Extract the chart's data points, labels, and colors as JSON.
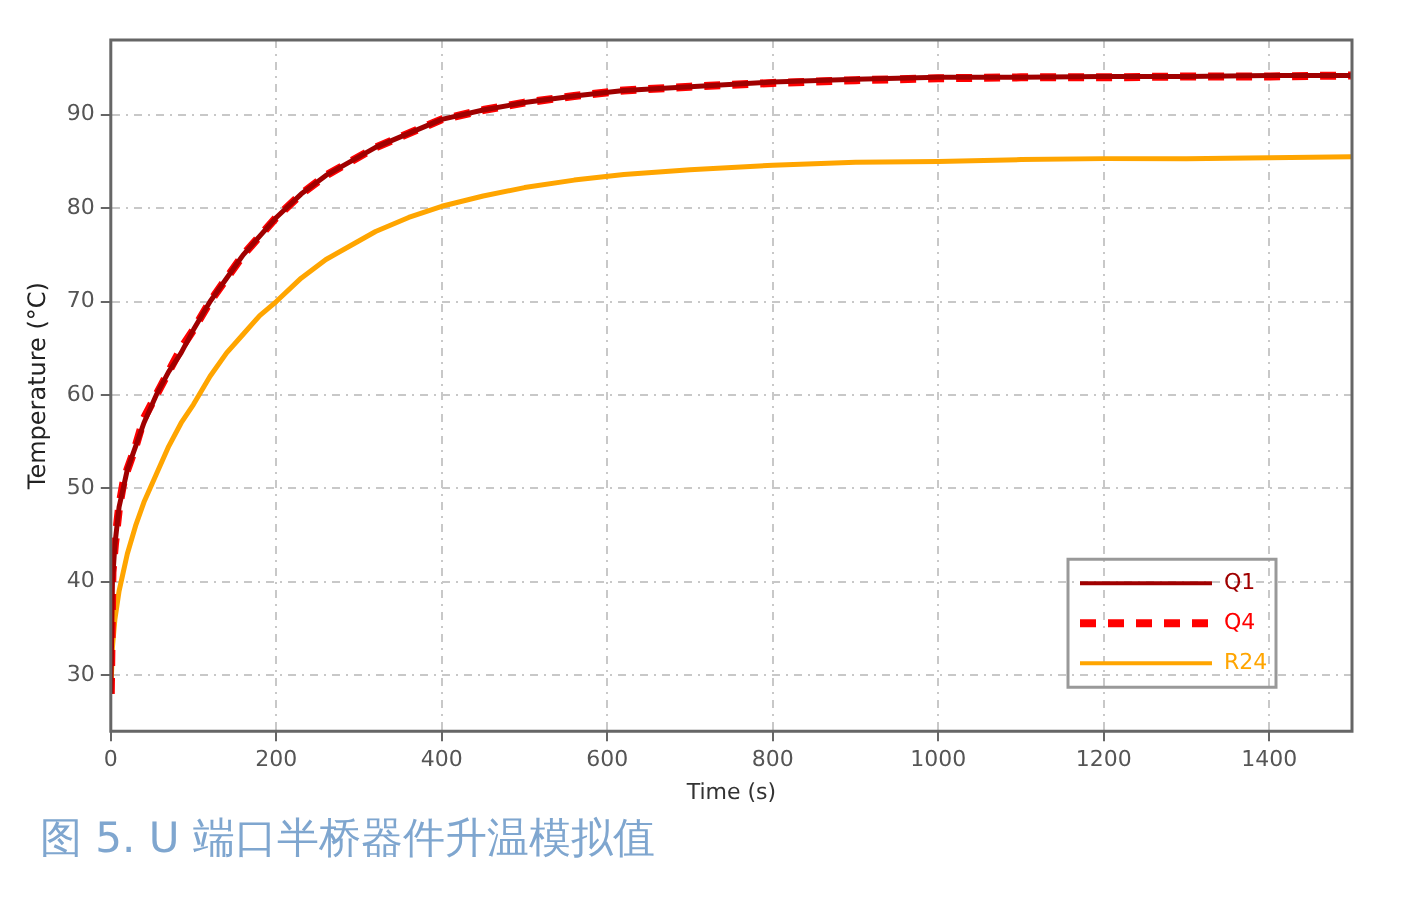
{
  "chart_data": {
    "type": "line",
    "xlabel": "Time (s)",
    "ylabel": "Temperature (°C)",
    "annotations": [
      "图 5. U 端口半桥器件升温模拟值"
    ],
    "x": [
      0,
      2,
      5,
      10,
      15,
      20,
      30,
      40,
      55,
      70,
      85,
      100,
      120,
      140,
      160,
      180,
      200,
      230,
      260,
      290,
      320,
      360,
      400,
      450,
      500,
      560,
      620,
      700,
      800,
      900,
      1000,
      1100,
      1200,
      1300,
      1400,
      1500
    ],
    "series": [
      {
        "name": "Q1",
        "color": "#a00000",
        "line_style": "solid",
        "values": [
          28,
          40,
          44,
          48,
          50,
          52,
          54.5,
          57,
          60,
          62.5,
          64.5,
          67,
          70,
          72.5,
          75,
          77,
          79,
          81.5,
          83.5,
          85,
          86.5,
          88,
          89.5,
          90.5,
          91.3,
          92,
          92.6,
          93,
          93.5,
          93.8,
          94,
          94,
          94.1,
          94.1,
          94.2,
          94.2
        ]
      },
      {
        "name": "Q4",
        "color": "#ff0000",
        "line_style": "dashed",
        "values": [
          28,
          41,
          44,
          48,
          50.5,
          52,
          54.5,
          57.5,
          60,
          62.5,
          65,
          67,
          70,
          72.5,
          75,
          77,
          79,
          81.5,
          83.5,
          85,
          86.5,
          88,
          89.5,
          90.5,
          91.3,
          92,
          92.6,
          93,
          93.4,
          93.7,
          93.9,
          94,
          94,
          94.1,
          94.1,
          94.2
        ]
      },
      {
        "name": "R24",
        "color": "#ffa500",
        "line_style": "solid",
        "values": [
          28,
          33,
          36,
          39,
          41,
          43,
          46,
          48.5,
          51.5,
          54.5,
          57,
          59,
          62,
          64.5,
          66.5,
          68.5,
          70,
          72.5,
          74.5,
          76,
          77.5,
          79,
          80.2,
          81.3,
          82.2,
          83,
          83.6,
          84.1,
          84.6,
          84.9,
          85,
          85.2,
          85.3,
          85.3,
          85.4,
          85.5
        ]
      }
    ],
    "xlim": [
      0,
      1500
    ],
    "xticks": [
      0,
      200,
      400,
      600,
      800,
      1000,
      1200,
      1400
    ],
    "ylim": [
      24,
      98
    ],
    "yticks": [
      30,
      40,
      50,
      60,
      70,
      80,
      90
    ],
    "grid": true,
    "legend": "bottom right",
    "marker": "none"
  }
}
